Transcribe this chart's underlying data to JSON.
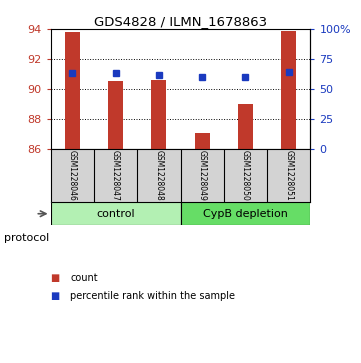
{
  "title": "GDS4828 / ILMN_1678863",
  "samples": [
    "GSM1228046",
    "GSM1228047",
    "GSM1228048",
    "GSM1228049",
    "GSM1228050",
    "GSM1228051"
  ],
  "bar_values": [
    93.8,
    90.55,
    90.6,
    87.1,
    89.0,
    93.85
  ],
  "percentile_values": [
    63,
    63,
    62,
    60,
    60,
    64
  ],
  "ylim_left": [
    86,
    94
  ],
  "ylim_right": [
    0,
    100
  ],
  "yticks_left": [
    86,
    88,
    90,
    92,
    94
  ],
  "yticks_right": [
    0,
    25,
    50,
    75,
    100
  ],
  "ytick_labels_right": [
    "0",
    "25",
    "50",
    "75",
    "100%"
  ],
  "bar_color": "#c0392b",
  "dot_color": "#1a3abf",
  "bar_bottom": 86,
  "control_label": "control",
  "cypb_label": "CypB depletion",
  "control_color": "#b3f0b3",
  "cypb_color": "#66dd66",
  "protocol_label": "protocol",
  "legend_bar_label": "count",
  "legend_dot_label": "percentile rank within the sample",
  "sample_box_color": "#d3d3d3",
  "background_color": "#ffffff",
  "bar_width": 0.35,
  "grid_dotted_at": [
    88,
    90,
    92
  ]
}
